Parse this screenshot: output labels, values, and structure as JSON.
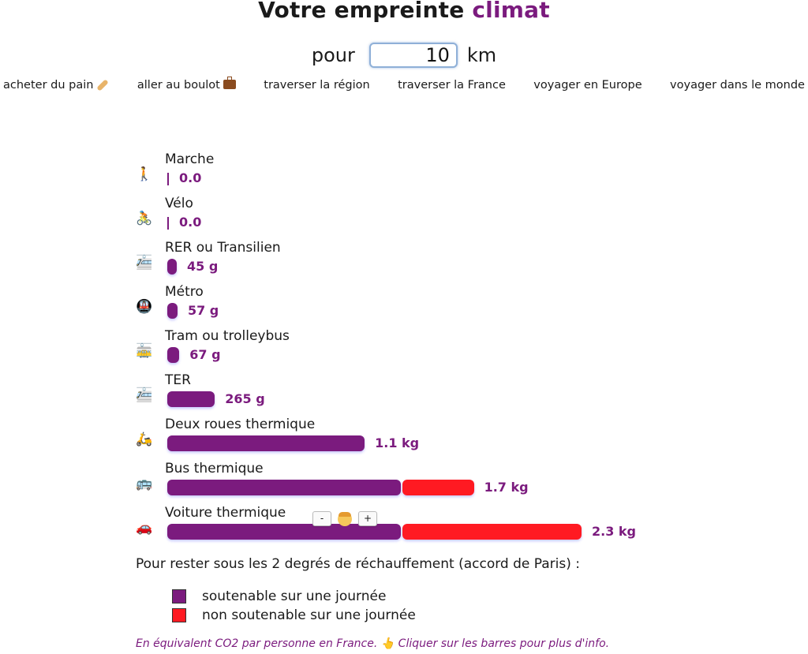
{
  "title": {
    "prefix": "Votre empreinte",
    "accent": "climat"
  },
  "distance": {
    "prefix": "pour",
    "value": "10",
    "unit": "km"
  },
  "presets": [
    {
      "label": "acheter du pain",
      "icon": "bread-icon"
    },
    {
      "label": "aller au boulot",
      "icon": "briefcase-icon"
    },
    {
      "label": "traverser la région"
    },
    {
      "label": "traverser la France"
    },
    {
      "label": "voyager en Europe"
    },
    {
      "label": "voyager dans le monde"
    }
  ],
  "colors": {
    "sustainable": "#7b1b7e",
    "unsustainable": "#ff1a22"
  },
  "chart_data": {
    "type": "bar",
    "orientation": "horizontal",
    "unit": "g CO2e",
    "categories": [
      "Marche",
      "Vélo",
      "RER ou Transilien",
      "Métro",
      "Tram ou trolleybus",
      "TER",
      "Deux roues thermique",
      "Bus thermique",
      "Voiture thermique"
    ],
    "value_labels": [
      "0.0",
      "0.0",
      "45 g",
      "57 g",
      "67 g",
      "265 g",
      "1.1 kg",
      "1.7 kg",
      "2.3 kg"
    ],
    "values": [
      0,
      0,
      45,
      57,
      67,
      265,
      1100,
      1700,
      2300
    ],
    "sustainable_part": [
      0,
      0,
      45,
      57,
      67,
      265,
      1100,
      1300,
      1300
    ],
    "unsustainable_part": [
      0,
      0,
      0,
      0,
      0,
      0,
      0,
      400,
      1000
    ]
  },
  "modes": [
    {
      "icon": "walking-person-icon",
      "glyph": "🚶"
    },
    {
      "icon": "bicycle-icon",
      "glyph": "🚴"
    },
    {
      "icon": "train-icon",
      "glyph": "🚈"
    },
    {
      "icon": "metro-icon",
      "glyph": "🚇"
    },
    {
      "icon": "tram-icon",
      "glyph": "🚋"
    },
    {
      "icon": "train-icon",
      "glyph": "🚈"
    },
    {
      "icon": "scooter-icon",
      "glyph": "🛵"
    },
    {
      "icon": "bus-icon",
      "glyph": "🚌"
    },
    {
      "icon": "car-icon",
      "glyph": "🚗"
    }
  ],
  "passenger_stepper": {
    "minus": "-",
    "plus": "+",
    "icon": "person-face-icon"
  },
  "note": "Pour rester sous les 2 degrés de réchauffement (accord de Paris) :",
  "legend": [
    {
      "label": "soutenable sur une journée",
      "color": "#7b1b7e"
    },
    {
      "label": "non soutenable sur une journée",
      "color": "#ff1a22"
    }
  ],
  "footer": {
    "text": "En équivalent CO2 par personne en France.",
    "hint": "Cliquer sur les barres pour plus d'info.",
    "icon": "pointing-hand-icon",
    "glyph": "👆"
  }
}
